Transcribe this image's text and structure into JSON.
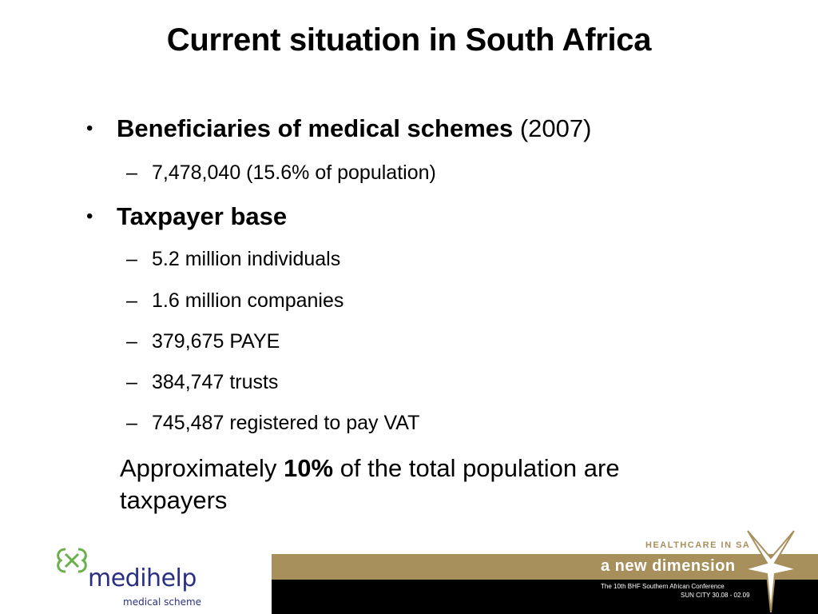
{
  "slide": {
    "title": "Current situation in South Africa",
    "bullets": [
      {
        "bold": "Beneficiaries of medical schemes",
        "rest": " (2007)",
        "subs": [
          "7,478,040 (15.6% of population)"
        ]
      },
      {
        "bold": "Taxpayer base",
        "rest": "",
        "subs": [
          "5.2 million individuals",
          "1.6 million companies",
          "379,675 PAYE",
          "384,747 trusts",
          "745,487 registered to pay VAT"
        ]
      }
    ],
    "bullet_char": "•",
    "dash_char": "–",
    "note": {
      "before": "Approximately ",
      "bold": "10%",
      "after": " of the total population are taxpayers"
    }
  },
  "footer": {
    "logo_name": "medihelp",
    "logo_sub": "medical scheme",
    "banner_top": "HEALTHCARE IN SA",
    "banner_main": "a new dimension",
    "banner_line1": "The 10th BHF Southern African Conference",
    "banner_line2": "SUN CITY 30.08 - 02.09"
  },
  "colors": {
    "logo_blue": "#2b2f82",
    "logo_green": "#6ab04c",
    "banner_gold": "#a8905c",
    "banner_black": "#000000"
  }
}
